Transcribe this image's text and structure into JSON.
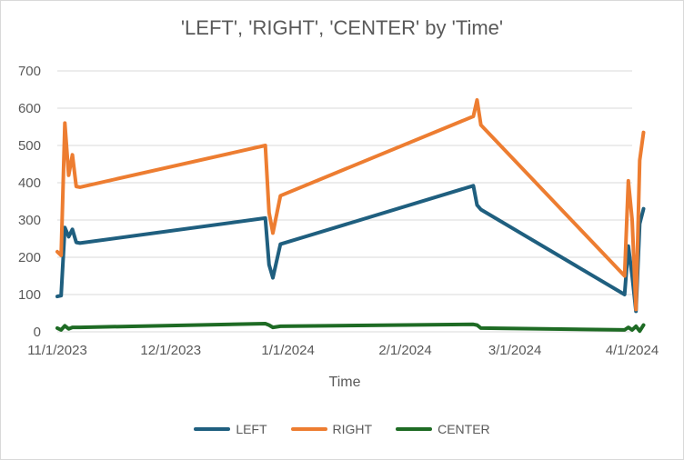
{
  "chart_data": {
    "type": "line",
    "title": "'LEFT', 'RIGHT', 'CENTER' by 'Time'",
    "xlabel": "Time",
    "ylabel": "",
    "ylim": [
      0,
      700
    ],
    "yticks": [
      0,
      100,
      200,
      300,
      400,
      500,
      600,
      700
    ],
    "xlim": [
      "2023-11-01",
      "2024-04-01"
    ],
    "xticks": [
      {
        "date": "2023-11-01",
        "label": "11/1/2023"
      },
      {
        "date": "2023-12-01",
        "label": "12/1/2023"
      },
      {
        "date": "2024-01-01",
        "label": "1/1/2024"
      },
      {
        "date": "2024-02-01",
        "label": "2/1/2024"
      },
      {
        "date": "2024-03-01",
        "label": "3/1/2024"
      },
      {
        "date": "2024-04-01",
        "label": "4/1/2024"
      }
    ],
    "grid": true,
    "legend_position": "bottom",
    "x": [
      "2023-11-01",
      "2023-11-02",
      "2023-11-03",
      "2023-11-04",
      "2023-11-05",
      "2023-11-06",
      "2023-11-07",
      "2023-12-26",
      "2023-12-27",
      "2023-12-28",
      "2023-12-30",
      "2024-02-19",
      "2024-02-20",
      "2024-02-21",
      "2024-03-30",
      "2024-03-31",
      "2024-04-01",
      "2024-04-02",
      "2024-04-03",
      "2024-04-04"
    ],
    "series": [
      {
        "name": "LEFT",
        "color": "#1f5f7f",
        "values": [
          95,
          97,
          280,
          255,
          275,
          240,
          238,
          305,
          180,
          145,
          235,
          392,
          340,
          328,
          100,
          230,
          150,
          55,
          290,
          330
        ]
      },
      {
        "name": "RIGHT",
        "color": "#ed7d31",
        "values": [
          215,
          205,
          560,
          420,
          475,
          390,
          388,
          500,
          320,
          265,
          365,
          578,
          622,
          555,
          150,
          405,
          300,
          60,
          460,
          535
        ]
      },
      {
        "name": "CENTER",
        "color": "#1e6b24",
        "values": [
          10,
          5,
          16,
          8,
          12,
          12,
          12,
          22,
          18,
          12,
          15,
          20,
          18,
          10,
          5,
          12,
          5,
          15,
          2,
          18
        ]
      }
    ]
  }
}
